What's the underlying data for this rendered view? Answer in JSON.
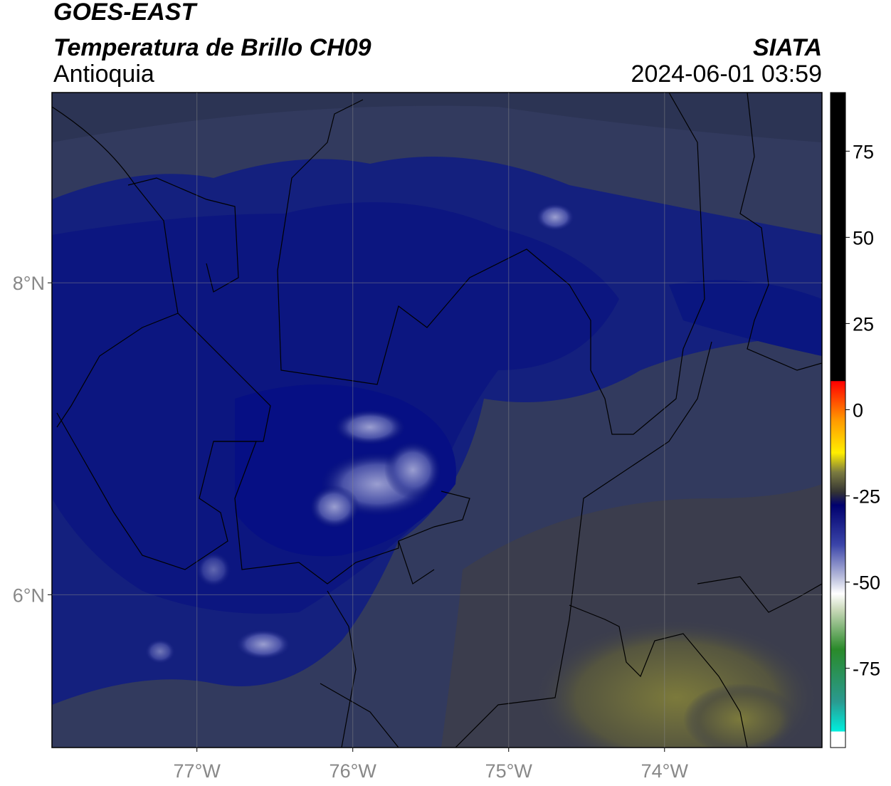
{
  "header": {
    "title": "GOES-EAST",
    "subtitle": "Temperatura de Brillo CH09",
    "region": "Antioquia",
    "source": "SIATA",
    "timestamp": "2024-06-01 03:59"
  },
  "map": {
    "lon_lim": [
      -77.93,
      -72.99
    ],
    "lat_lim": [
      5.02,
      9.22
    ],
    "lon_ticks": [
      {
        "value": -77,
        "label": "77°W"
      },
      {
        "value": -76,
        "label": "76°W"
      },
      {
        "value": -75,
        "label": "75°W"
      },
      {
        "value": -74,
        "label": "74°W"
      }
    ],
    "lat_ticks": [
      {
        "value": 8,
        "label": "8°N"
      },
      {
        "value": 6,
        "label": "6°N"
      }
    ]
  },
  "colorbar": {
    "lim": [
      -98,
      92
    ],
    "ticks": [
      75,
      50,
      25,
      0,
      -25,
      -50,
      -75
    ]
  }
}
